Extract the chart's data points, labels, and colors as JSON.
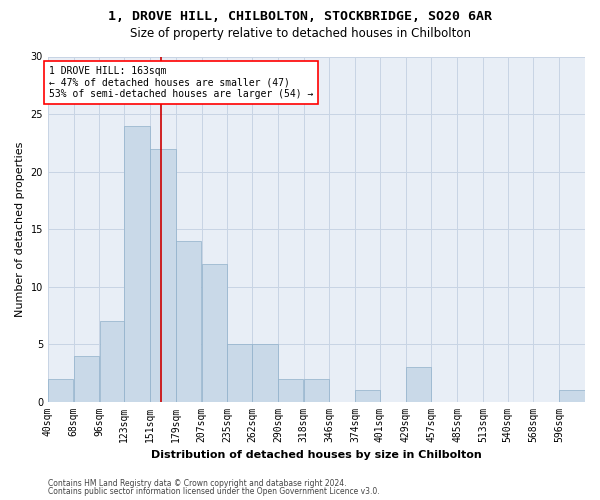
{
  "title_line1": "1, DROVE HILL, CHILBOLTON, STOCKBRIDGE, SO20 6AR",
  "title_line2": "Size of property relative to detached houses in Chilbolton",
  "xlabel": "Distribution of detached houses by size in Chilbolton",
  "ylabel": "Number of detached properties",
  "categories": [
    "40sqm",
    "68sqm",
    "96sqm",
    "123sqm",
    "151sqm",
    "179sqm",
    "207sqm",
    "235sqm",
    "262sqm",
    "290sqm",
    "318sqm",
    "346sqm",
    "374sqm",
    "401sqm",
    "429sqm",
    "457sqm",
    "485sqm",
    "513sqm",
    "540sqm",
    "568sqm",
    "596sqm"
  ],
  "values": [
    2,
    4,
    7,
    24,
    22,
    14,
    12,
    5,
    5,
    2,
    2,
    0,
    1,
    0,
    3,
    0,
    0,
    0,
    0,
    0,
    1
  ],
  "bar_color": "#c9d9e8",
  "bar_edge_color": "#8fb0ca",
  "grid_color": "#c8d4e4",
  "background_color": "#e8eef6",
  "bin_edges": [
    40,
    68,
    96,
    123,
    151,
    179,
    207,
    235,
    262,
    290,
    318,
    346,
    374,
    401,
    429,
    457,
    485,
    513,
    540,
    568,
    596,
    624
  ],
  "annotation_text_line1": "1 DROVE HILL: 163sqm",
  "annotation_text_line2": "← 47% of detached houses are smaller (47)",
  "annotation_text_line3": "53% of semi-detached houses are larger (54) →",
  "vline_color": "#cc0000",
  "vline_x": 163,
  "ylim": [
    0,
    30
  ],
  "yticks": [
    0,
    5,
    10,
    15,
    20,
    25,
    30
  ],
  "footer_line1": "Contains HM Land Registry data © Crown copyright and database right 2024.",
  "footer_line2": "Contains public sector information licensed under the Open Government Licence v3.0.",
  "title_fontsize": 9.5,
  "subtitle_fontsize": 8.5,
  "ylabel_fontsize": 8,
  "xlabel_fontsize": 8,
  "tick_fontsize": 7,
  "annotation_fontsize": 7,
  "footer_fontsize": 5.5
}
